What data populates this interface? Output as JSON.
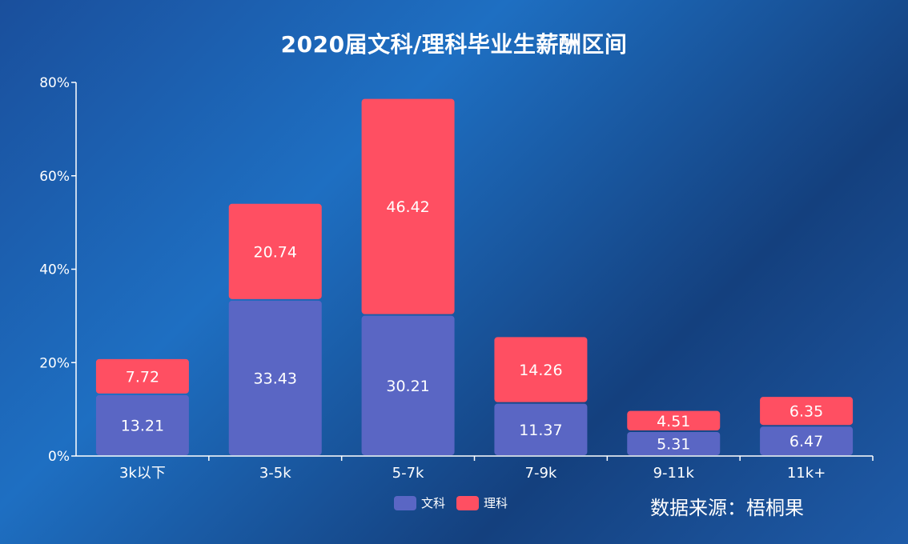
{
  "chart_data": {
    "type": "bar",
    "stacked": true,
    "title": "2020届文科/理科毕业生薪酬区间",
    "categories": [
      "3k以下",
      "3-5k",
      "5-7k",
      "7-9k",
      "9-11k",
      "11k+"
    ],
    "series": [
      {
        "name": "文科",
        "color": "#5a66c4",
        "values": [
          13.21,
          33.43,
          30.21,
          11.37,
          5.31,
          6.47
        ]
      },
      {
        "name": "理科",
        "color": "#ff4f62",
        "values": [
          7.72,
          20.74,
          46.42,
          14.26,
          4.51,
          6.35
        ]
      }
    ],
    "yticks": [
      "0%",
      "20%",
      "40%",
      "60%",
      "80%"
    ],
    "ylim": [
      0,
      80
    ],
    "legend_position": "bottom-center"
  },
  "source": "数据来源：梧桐果"
}
